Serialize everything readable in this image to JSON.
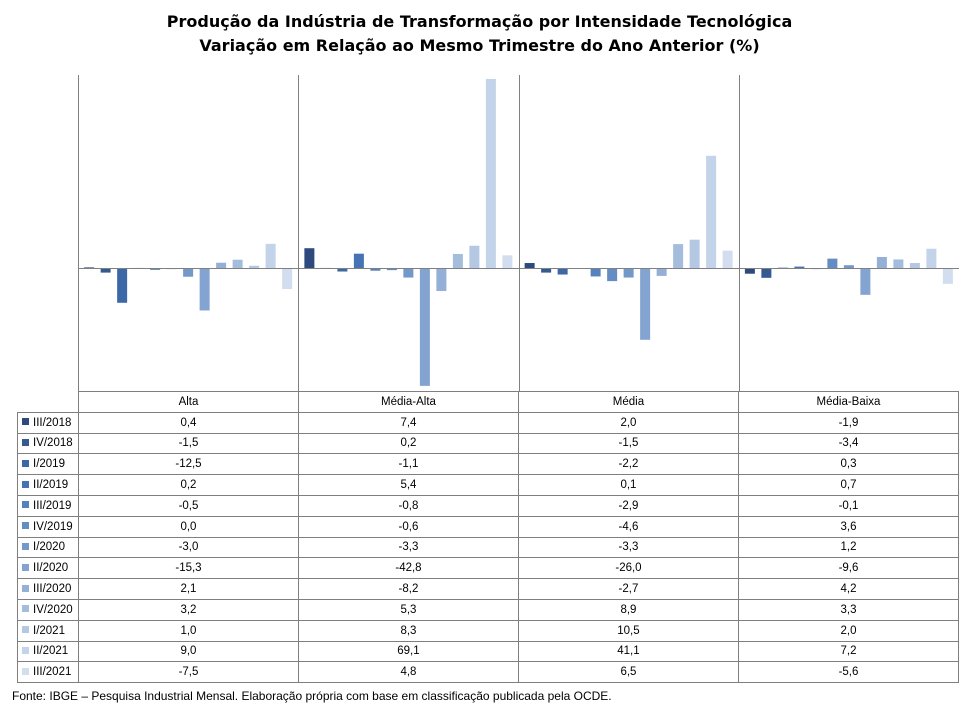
{
  "title_line1": "Produção  da Indústria  de Transformação  por  Intensidade  Tecnológica",
  "title_line2": "Variação  em Relação ao Mesmo Trimestre  do Ano Anterior  (%)",
  "source": "Fonte: IBGE – Pesquisa Industrial Mensal. Elaboração própria com base em classificação publicada pela OCDE.",
  "chart_data": {
    "type": "bar",
    "title": "Produção da Indústria de Transformação por Intensidade Tecnológica — Variação em Relação ao Mesmo Trimestre do Ano Anterior (%)",
    "categories": [
      "Alta",
      "Média-Alta",
      "Média",
      "Média-Baixa"
    ],
    "ylim": [
      -42.8,
      69.1
    ],
    "grid": false,
    "legend": "data-table-left",
    "series": [
      {
        "name": "III/2018",
        "color": "#2e4a7d",
        "values": [
          0.4,
          7.4,
          2.0,
          -1.9
        ],
        "display": [
          "0,4",
          "7,4",
          "2,0",
          "-1,9"
        ]
      },
      {
        "name": "IV/2018",
        "color": "#345a92",
        "values": [
          -1.5,
          0.2,
          -1.5,
          -3.4
        ],
        "display": [
          "-1,5",
          "0,2",
          "-1,5",
          "-3,4"
        ]
      },
      {
        "name": "I/2019",
        "color": "#3c68a8",
        "values": [
          -12.5,
          -1.1,
          -2.2,
          0.3
        ],
        "display": [
          "-12,5",
          "-1,1",
          "-2,2",
          "0,3"
        ]
      },
      {
        "name": "II/2019",
        "color": "#4673b3",
        "values": [
          0.2,
          5.4,
          0.1,
          0.7
        ],
        "display": [
          "0,2",
          "5,4",
          "0,1",
          "0,7"
        ]
      },
      {
        "name": "III/2019",
        "color": "#5581bd",
        "values": [
          -0.5,
          -0.8,
          -2.9,
          -0.1
        ],
        "display": [
          "-0,5",
          "-0,8",
          "-2,9",
          "-0,1"
        ]
      },
      {
        "name": "IV/2019",
        "color": "#648dc4",
        "values": [
          0.0,
          -0.6,
          -4.6,
          3.6
        ],
        "display": [
          "0,0",
          "-0,6",
          "-4,6",
          "3,6"
        ]
      },
      {
        "name": "I/2020",
        "color": "#7398ca",
        "values": [
          -3.0,
          -3.3,
          -3.3,
          1.2
        ],
        "display": [
          "-3,0",
          "-3,3",
          "-3,3",
          "1,2"
        ]
      },
      {
        "name": "II/2020",
        "color": "#83a3d0",
        "values": [
          -15.3,
          -42.8,
          -26.0,
          -9.6
        ],
        "display": [
          "-15,3",
          "-42,8",
          "-26,0",
          "-9,6"
        ]
      },
      {
        "name": "III/2020",
        "color": "#94b0d7",
        "values": [
          2.1,
          -8.2,
          -2.7,
          4.2
        ],
        "display": [
          "2,1",
          "-8,2",
          "-2,7",
          "4,2"
        ]
      },
      {
        "name": "IV/2020",
        "color": "#a5bddd",
        "values": [
          3.2,
          5.3,
          8.9,
          3.3
        ],
        "display": [
          "3,2",
          "5,3",
          "8,9",
          "3,3"
        ]
      },
      {
        "name": "I/2021",
        "color": "#b5c8e3",
        "values": [
          1.0,
          8.3,
          10.5,
          2.0
        ],
        "display": [
          "1,0",
          "8,3",
          "10,5",
          "2,0"
        ]
      },
      {
        "name": "II/2021",
        "color": "#c3d3e9",
        "values": [
          9.0,
          69.1,
          41.1,
          7.2
        ],
        "display": [
          "9,0",
          "69,1",
          "41,1",
          "7,2"
        ]
      },
      {
        "name": "III/2021",
        "color": "#d2deef",
        "values": [
          -7.5,
          4.8,
          6.5,
          -5.6
        ],
        "display": [
          "-7,5",
          "4,8",
          "6,5",
          "-5,6"
        ]
      }
    ]
  }
}
